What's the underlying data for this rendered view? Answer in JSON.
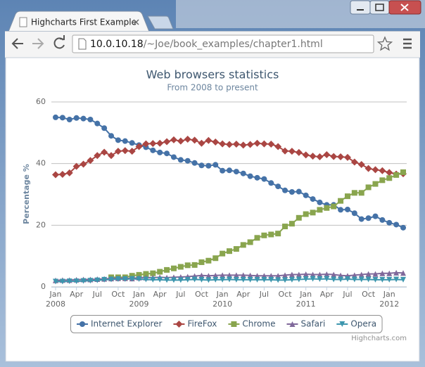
{
  "browser": {
    "tab_title": "Highcharts First Example",
    "url_host": "10.0.10.18",
    "url_path": "/~Joe/book_examples/chapter1.html"
  },
  "chart_data": {
    "type": "line",
    "title": "Web browsers statistics",
    "subtitle": "From 2008 to present",
    "y_label": "Percentage %",
    "credits": "Highcharts.com",
    "x": [
      "2008-01",
      "2008-02",
      "2008-03",
      "2008-04",
      "2008-05",
      "2008-06",
      "2008-07",
      "2008-08",
      "2008-09",
      "2008-10",
      "2008-11",
      "2008-12",
      "2009-01",
      "2009-02",
      "2009-03",
      "2009-04",
      "2009-05",
      "2009-06",
      "2009-07",
      "2009-08",
      "2009-09",
      "2009-10",
      "2009-11",
      "2009-12",
      "2010-01",
      "2010-02",
      "2010-03",
      "2010-04",
      "2010-05",
      "2010-06",
      "2010-07",
      "2010-08",
      "2010-09",
      "2010-10",
      "2010-11",
      "2010-12",
      "2011-01",
      "2011-02",
      "2011-03",
      "2011-04",
      "2011-05",
      "2011-06",
      "2011-07",
      "2011-08",
      "2011-09",
      "2011-10",
      "2011-11",
      "2011-12",
      "2012-01",
      "2012-02",
      "2012-03"
    ],
    "xticks": [
      {
        "value": "2008-01",
        "label": "Jan"
      },
      {
        "value": "2008-04",
        "label": "Apr"
      },
      {
        "value": "2008-07",
        "label": "Jul"
      },
      {
        "value": "2008-10",
        "label": "Oct"
      },
      {
        "value": "2009-01",
        "label": "Jan"
      },
      {
        "value": "2009-04",
        "label": "Apr"
      },
      {
        "value": "2009-07",
        "label": "Jul"
      },
      {
        "value": "2009-10",
        "label": "Oct"
      },
      {
        "value": "2010-01",
        "label": "Jan"
      },
      {
        "value": "2010-04",
        "label": "Apr"
      },
      {
        "value": "2010-07",
        "label": "Jul"
      },
      {
        "value": "2010-10",
        "label": "Oct"
      },
      {
        "value": "2011-01",
        "label": "Jan"
      },
      {
        "value": "2011-04",
        "label": "Apr"
      },
      {
        "value": "2011-07",
        "label": "Jul"
      },
      {
        "value": "2011-10",
        "label": "Oct"
      },
      {
        "value": "2012-01",
        "label": "Jan"
      }
    ],
    "xyears": [
      {
        "value": "2008-01",
        "label": "2008"
      },
      {
        "value": "2009-01",
        "label": "2009"
      },
      {
        "value": "2010-01",
        "label": "2010"
      },
      {
        "value": "2011-01",
        "label": "2011"
      },
      {
        "value": "2012-01",
        "label": "2012"
      }
    ],
    "ylim": [
      0,
      60
    ],
    "yticks": [
      0,
      20,
      40,
      60
    ],
    "grid": true,
    "series": [
      {
        "name": "Internet Explorer",
        "color": "#4572A7",
        "marker": "circle",
        "values": [
          55.0,
          54.9,
          54.3,
          54.8,
          54.6,
          54.3,
          53.0,
          51.5,
          49.0,
          47.6,
          47.3,
          46.7,
          46.0,
          45.3,
          44.3,
          43.6,
          43.3,
          42.1,
          41.2,
          40.9,
          40.2,
          39.4,
          39.3,
          39.6,
          37.7,
          37.8,
          37.4,
          36.8,
          35.9,
          35.4,
          35.0,
          33.7,
          32.6,
          31.3,
          30.8,
          30.9,
          29.7,
          28.5,
          27.4,
          26.6,
          26.6,
          25.0,
          25.1,
          23.9,
          22.0,
          22.3,
          22.9,
          21.7,
          20.8,
          20.2,
          19.2
        ]
      },
      {
        "name": "FireFox",
        "color": "#AA4643",
        "marker": "diamond",
        "values": [
          36.4,
          36.5,
          37.0,
          39.1,
          39.8,
          41.0,
          42.6,
          43.7,
          42.6,
          44.0,
          44.2,
          44.0,
          45.5,
          46.4,
          46.5,
          46.6,
          47.1,
          47.7,
          47.3,
          47.9,
          47.6,
          46.6,
          47.5,
          47.0,
          46.4,
          46.2,
          46.3,
          46.0,
          46.2,
          46.6,
          46.4,
          46.3,
          45.5,
          44.1,
          44.0,
          43.6,
          42.8,
          42.4,
          42.2,
          42.9,
          42.3,
          42.2,
          42.0,
          40.5,
          39.7,
          38.4,
          38.0,
          37.7,
          37.1,
          36.6,
          36.7
        ]
      },
      {
        "name": "Chrome",
        "color": "#89A54E",
        "marker": "square",
        "values": [
          null,
          null,
          null,
          null,
          null,
          null,
          null,
          null,
          3.1,
          3.1,
          3.1,
          3.6,
          3.9,
          4.2,
          4.4,
          4.9,
          5.5,
          6.0,
          6.5,
          7.0,
          7.1,
          8.0,
          8.5,
          9.3,
          10.8,
          11.6,
          12.3,
          13.6,
          14.5,
          15.9,
          16.7,
          17.0,
          17.3,
          19.6,
          20.5,
          22.4,
          23.6,
          24.1,
          25.0,
          25.6,
          26.1,
          27.9,
          29.4,
          30.5,
          30.5,
          32.3,
          33.4,
          34.6,
          35.3,
          36.3,
          37.2
        ]
      },
      {
        "name": "Safari",
        "color": "#80699B",
        "marker": "triangle",
        "values": [
          2.1,
          2.2,
          2.2,
          2.3,
          2.4,
          2.4,
          2.5,
          2.6,
          2.7,
          2.8,
          2.8,
          2.7,
          3.0,
          3.0,
          3.0,
          3.1,
          3.0,
          3.1,
          3.2,
          3.3,
          3.5,
          3.7,
          3.6,
          3.7,
          3.8,
          3.8,
          3.8,
          3.8,
          3.7,
          3.6,
          3.6,
          3.6,
          3.6,
          3.8,
          4.0,
          4.0,
          4.1,
          4.0,
          4.0,
          4.1,
          4.0,
          3.7,
          3.6,
          3.8,
          4.0,
          4.2,
          4.2,
          4.4,
          4.4,
          4.6,
          4.5
        ]
      },
      {
        "name": "Opera",
        "color": "#3D96AE",
        "marker": "triangle-down",
        "values": [
          1.7,
          1.7,
          1.8,
          1.8,
          1.9,
          2.0,
          2.1,
          2.3,
          2.4,
          2.5,
          2.5,
          2.6,
          2.5,
          2.4,
          2.3,
          2.3,
          2.2,
          2.2,
          2.2,
          2.3,
          2.4,
          2.3,
          2.2,
          2.3,
          2.3,
          2.4,
          2.3,
          2.3,
          2.3,
          2.3,
          2.3,
          2.3,
          2.2,
          2.2,
          2.3,
          2.4,
          2.5,
          2.6,
          2.5,
          2.6,
          2.4,
          2.4,
          2.5,
          2.4,
          2.4,
          2.4,
          2.3,
          2.3,
          2.3,
          2.4,
          2.3
        ]
      }
    ]
  }
}
